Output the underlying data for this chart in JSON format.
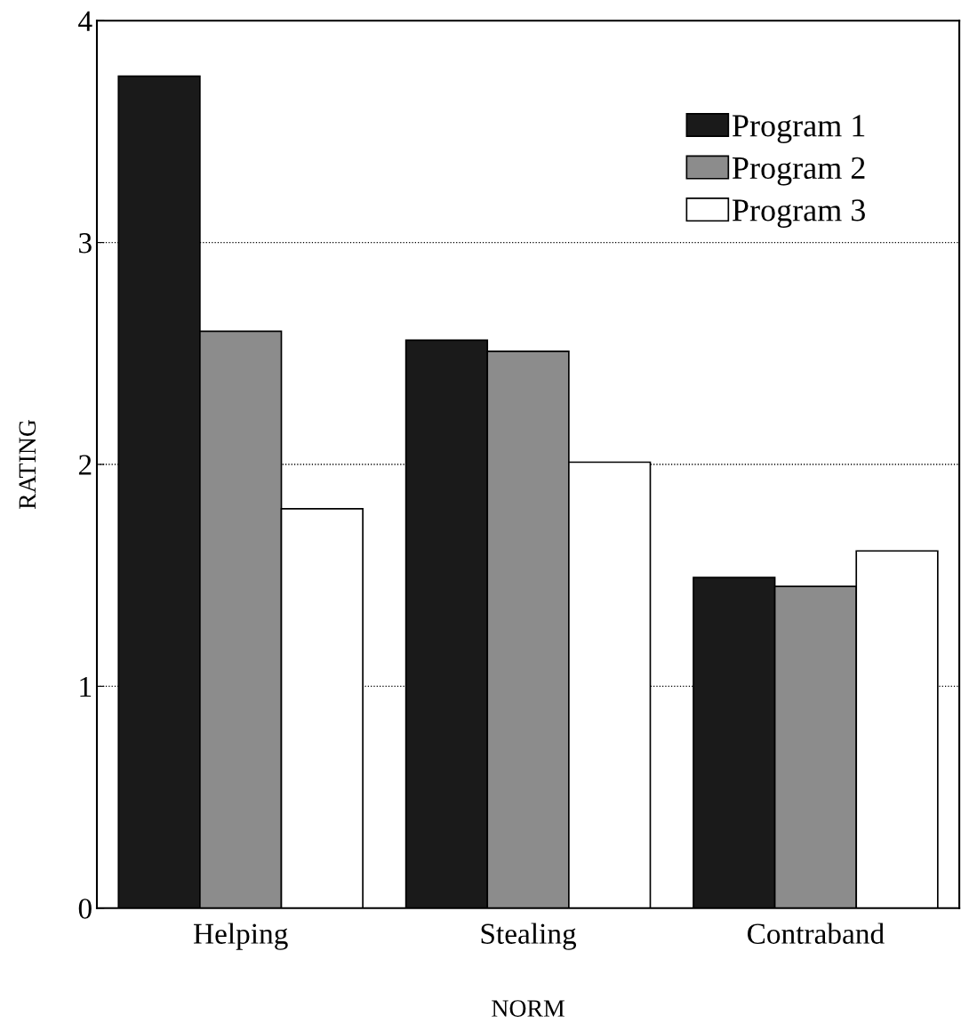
{
  "chart_data": {
    "type": "bar",
    "xlabel": "NORM",
    "ylabel": "RATING",
    "categories": [
      "Helping",
      "Stealing",
      "Contraband"
    ],
    "series": [
      {
        "name": "Program 1",
        "color": "#1a1a1a",
        "values": [
          3.75,
          2.56,
          1.49
        ]
      },
      {
        "name": "Program 2",
        "color": "#8c8c8c",
        "values": [
          2.6,
          2.51,
          1.45
        ]
      },
      {
        "name": "Program 3",
        "color": "#ffffff",
        "values": [
          1.8,
          2.01,
          1.61
        ]
      }
    ],
    "ylim": [
      0,
      4
    ],
    "yticks": [
      0,
      1,
      2,
      3,
      4
    ],
    "grid": "y",
    "legend": "top right"
  }
}
